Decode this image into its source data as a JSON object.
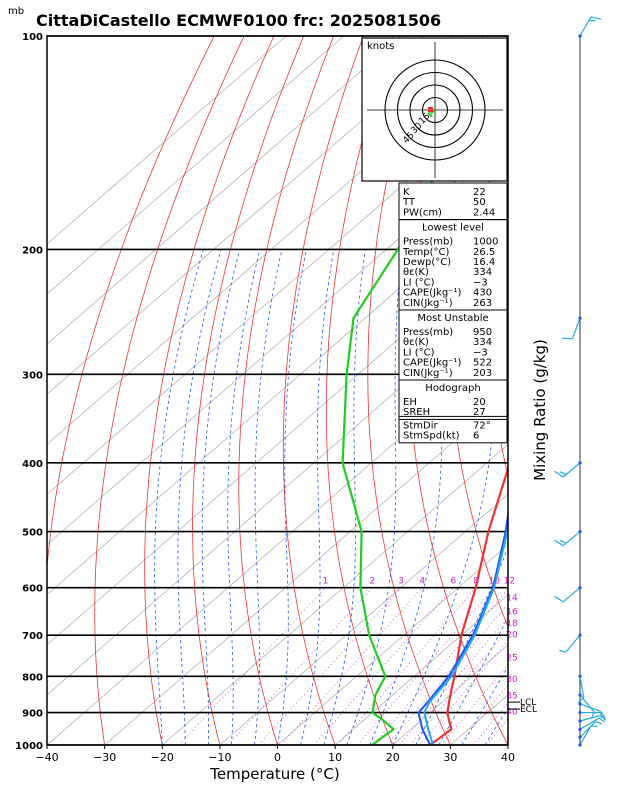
{
  "header": {
    "pressure_unit": "mb",
    "title": "CittaDiCastello ECMWF0100 frc: 2025081506"
  },
  "colors": {
    "temperature_profile": "#ee3333",
    "dewpoint_profile": "#22cc22",
    "parcel_profile": "#2255ee",
    "virtual_profile": "#22aaee",
    "dry_adiabat": "#ee3333",
    "moist_adiabat": "#2255ee",
    "mixing_ratio": "#cc22cc",
    "isotherm": "#aaaaaa",
    "wind_barb": "#22aadd"
  },
  "chart_data": {
    "type": "line",
    "xlabel": "Temperature (°C)",
    "ylabel": "Mixing Ratio (g/kg)",
    "x_ticks": [
      "−40",
      "−30",
      "−20",
      "−10",
      "0",
      "10",
      "20",
      "30",
      "40"
    ],
    "xlim": [
      -40,
      40
    ],
    "pressure_range": [
      100,
      1000
    ],
    "pressure_labels": [
      "100",
      "200",
      "300",
      "400",
      "500",
      "600",
      "700",
      "800",
      "900",
      "1000"
    ],
    "mixing_ratio_labels": [
      "1",
      "2",
      "3",
      "4",
      "6",
      "8",
      "10",
      "12",
      "14",
      "16",
      "18",
      "20",
      "25",
      "30",
      "35",
      "40"
    ],
    "series": [
      {
        "key": "temperature",
        "points": [
          [
            1000,
            26.5
          ],
          [
            950,
            27
          ],
          [
            925,
            25
          ],
          [
            900,
            23
          ],
          [
            850,
            20
          ],
          [
            800,
            17
          ],
          [
            700,
            10
          ],
          [
            600,
            3
          ],
          [
            500,
            -6
          ],
          [
            400,
            -16
          ],
          [
            300,
            -30
          ],
          [
            250,
            -40
          ],
          [
            200,
            -48
          ],
          [
            150,
            -58
          ],
          [
            100,
            -68
          ]
        ]
      },
      {
        "key": "dewpoint",
        "points": [
          [
            1000,
            16.4
          ],
          [
            950,
            17
          ],
          [
            920,
            13
          ],
          [
            900,
            10
          ],
          [
            850,
            7
          ],
          [
            800,
            5
          ],
          [
            700,
            -6
          ],
          [
            600,
            -17
          ],
          [
            500,
            -28
          ],
          [
            400,
            -45
          ],
          [
            300,
            -62
          ],
          [
            250,
            -72
          ],
          [
            200,
            -78
          ],
          [
            150,
            -88
          ],
          [
            100,
            -98
          ]
        ]
      },
      {
        "key": "parcel",
        "points": [
          [
            1000,
            26.5
          ],
          [
            950,
            22
          ],
          [
            900,
            18
          ],
          [
            870,
            17.5
          ],
          [
            800,
            16
          ],
          [
            700,
            12
          ],
          [
            600,
            6
          ],
          [
            500,
            -3
          ],
          [
            400,
            -15
          ],
          [
            300,
            -31
          ],
          [
            200,
            -56
          ],
          [
            150,
            -73
          ],
          [
            120,
            -85
          ]
        ]
      },
      {
        "key": "virtual",
        "points": [
          [
            1000,
            27
          ],
          [
            950,
            23
          ],
          [
            900,
            19
          ],
          [
            870,
            17.8
          ],
          [
            800,
            16.5
          ],
          [
            700,
            12.3
          ],
          [
            600,
            6.2
          ],
          [
            500,
            -2.7
          ],
          [
            400,
            -14.5
          ],
          [
            300,
            -30.5
          ],
          [
            200,
            -55
          ],
          [
            150,
            -72
          ],
          [
            103,
            -87
          ]
        ]
      }
    ],
    "lines": [
      {
        "label": "LCL",
        "pressure": 870
      },
      {
        "label": "ECL",
        "pressure": 890
      }
    ],
    "wind_barbs": [
      {
        "pressure": 1000,
        "dir": 30,
        "speed": 5
      },
      {
        "pressure": 975,
        "dir": 45,
        "speed": 5
      },
      {
        "pressure": 950,
        "dir": 60,
        "speed": 5
      },
      {
        "pressure": 925,
        "dir": 75,
        "speed": 5
      },
      {
        "pressure": 900,
        "dir": 90,
        "speed": 5
      },
      {
        "pressure": 875,
        "dir": 110,
        "speed": 5
      },
      {
        "pressure": 850,
        "dir": 140,
        "speed": 5
      },
      {
        "pressure": 800,
        "dir": 170,
        "speed": 5
      },
      {
        "pressure": 700,
        "dir": 220,
        "speed": 5
      },
      {
        "pressure": 600,
        "dir": 230,
        "speed": 10
      },
      {
        "pressure": 500,
        "dir": 230,
        "speed": 15
      },
      {
        "pressure": 400,
        "dir": 230,
        "speed": 15
      },
      {
        "pressure": 250,
        "dir": 200,
        "speed": 10
      },
      {
        "pressure": 100,
        "dir": 30,
        "speed": 15
      }
    ],
    "hodograph": {
      "title": "knots",
      "ring_labels": [
        "15",
        "30",
        "45"
      ],
      "trace_color": "#22cc22",
      "points": [
        [
          0,
          0
        ],
        [
          -3,
          -3
        ],
        [
          -6,
          -6
        ],
        [
          -3,
          -8
        ],
        [
          -8,
          -4
        ],
        [
          -5,
          -2
        ],
        [
          0,
          0
        ]
      ]
    }
  },
  "indices": {
    "basic": [
      [
        "K",
        "22"
      ],
      [
        "TT",
        "50"
      ],
      [
        "PW(cm)",
        "2.44"
      ]
    ],
    "lowest_level_title": "Lowest level",
    "lowest_level": [
      [
        "Press(mb)",
        "1000"
      ],
      [
        "Temp(°C)",
        "26.5"
      ],
      [
        "Dewp(°C)",
        "16.4"
      ],
      [
        "θε(K)",
        "334"
      ],
      [
        "LI (°C)",
        "−3"
      ],
      [
        "CAPE(Jkg⁻¹)",
        "430"
      ],
      [
        "CIN(Jkg⁻¹)",
        "263"
      ]
    ],
    "most_unstable_title": "Most Unstable",
    "most_unstable": [
      [
        "Press(mb)",
        "950"
      ],
      [
        "θε(K)",
        "334"
      ],
      [
        "LI (°C)",
        "−3"
      ],
      [
        "CAPE(Jkg⁻¹)",
        "522"
      ],
      [
        "CIN(Jkg⁻¹)",
        "203"
      ]
    ],
    "hodograph_title": "Hodograph",
    "hodograph": [
      [
        "EH",
        "20"
      ],
      [
        "SREH",
        "27"
      ]
    ],
    "storm": [
      [
        "StmDir",
        "72°"
      ],
      [
        "StmSpd(kt)",
        "6"
      ]
    ]
  }
}
